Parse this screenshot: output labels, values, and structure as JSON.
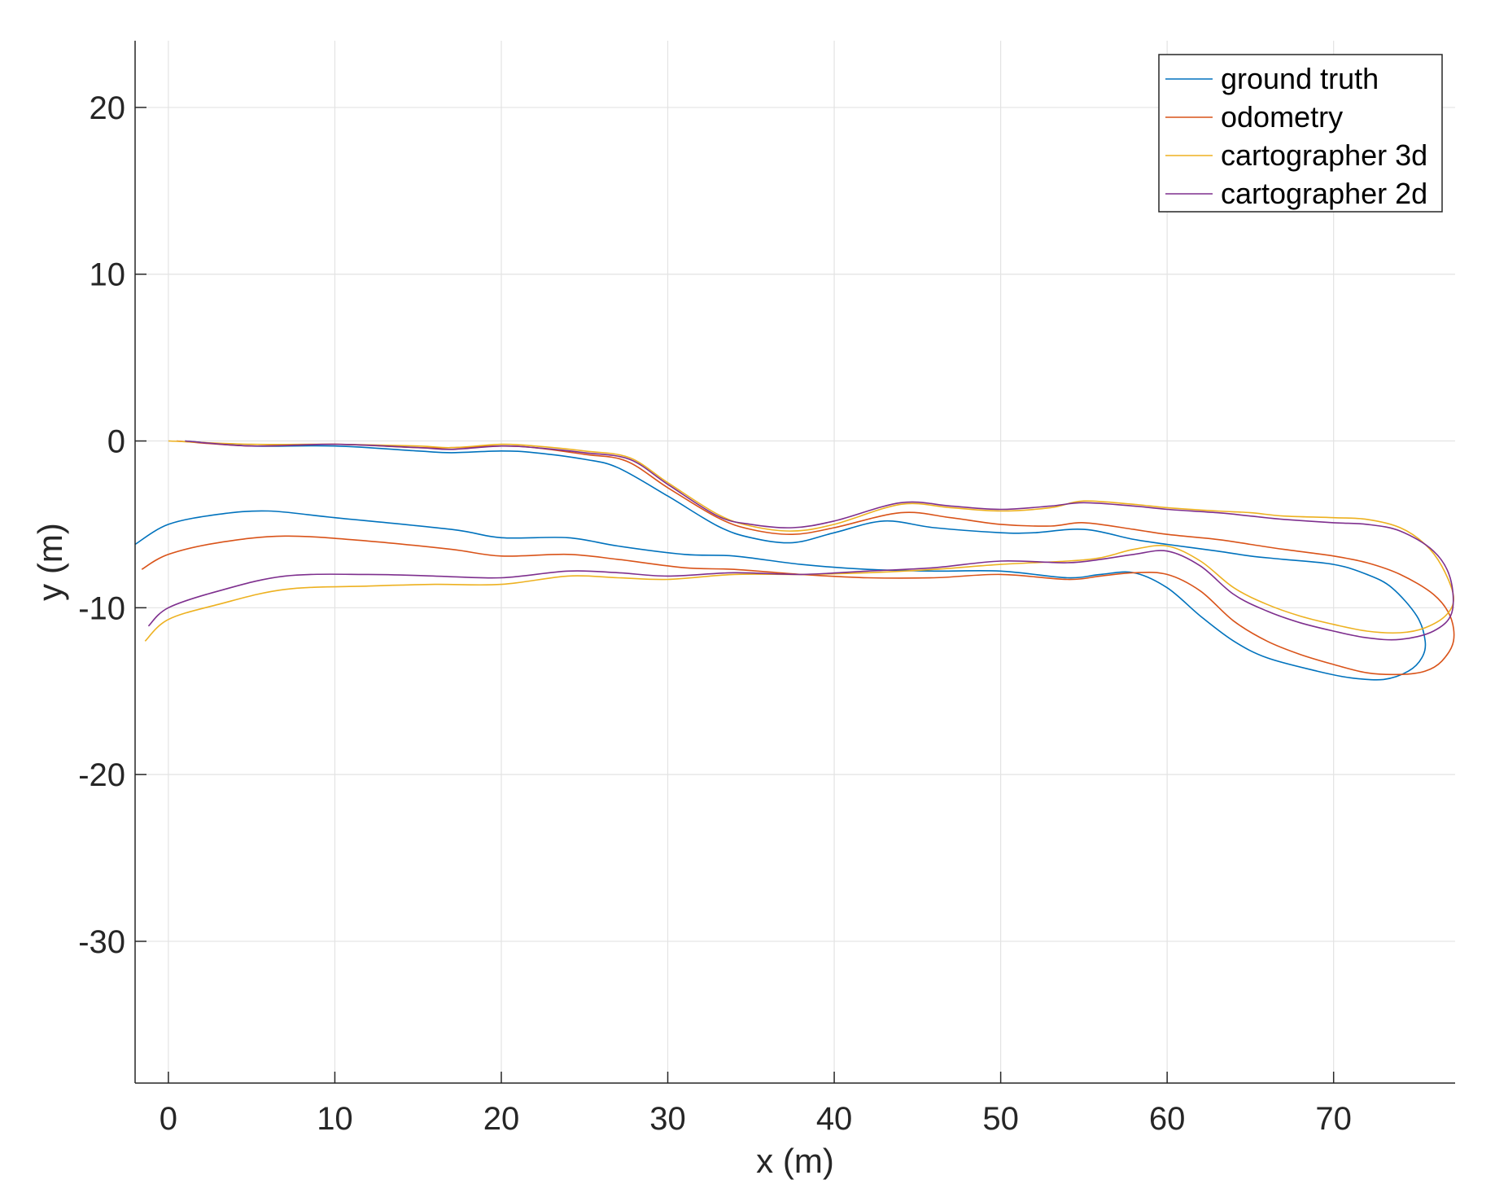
{
  "chart_data": {
    "type": "line",
    "title": "",
    "xlabel": "x (m)",
    "ylabel": "y (m)",
    "xlim": [
      -2,
      77.3
    ],
    "ylim": [
      -38.5,
      24
    ],
    "xticks": [
      0,
      10,
      20,
      30,
      40,
      50,
      60,
      70
    ],
    "yticks": [
      -30,
      -20,
      -10,
      0,
      10,
      20
    ],
    "xtick_labels": [
      "0",
      "10",
      "20",
      "30",
      "40",
      "50",
      "60",
      "70"
    ],
    "ytick_labels": [
      "-30",
      "-20",
      "-10",
      "0",
      "10",
      "20"
    ],
    "grid": true,
    "legend_position": "top-right",
    "series": [
      {
        "name": "ground truth",
        "color": "#0072BD",
        "x": [
          1,
          5,
          10,
          15,
          17,
          20,
          22,
          25,
          27,
          30,
          33,
          35,
          37.5,
          40,
          43,
          46,
          50,
          52,
          55,
          58,
          60,
          63,
          65,
          67,
          70,
          72,
          73.5,
          75,
          75.5,
          75.3,
          74.5,
          73,
          71,
          69,
          66,
          64,
          62,
          60,
          58,
          56,
          54,
          50,
          46,
          42,
          38,
          34,
          31,
          27,
          24,
          20,
          17,
          10,
          6,
          3,
          0,
          -2
        ],
        "y": [
          0,
          -0.3,
          -0.3,
          -0.6,
          -0.7,
          -0.6,
          -0.7,
          -1.1,
          -1.6,
          -3.3,
          -5.1,
          -5.8,
          -6.1,
          -5.5,
          -4.8,
          -5.2,
          -5.5,
          -5.5,
          -5.3,
          -5.9,
          -6.2,
          -6.6,
          -6.9,
          -7.1,
          -7.4,
          -8.0,
          -8.8,
          -10.5,
          -12.0,
          -13.0,
          -13.8,
          -14.3,
          -14.2,
          -13.8,
          -13.0,
          -12.0,
          -10.5,
          -8.8,
          -7.9,
          -8.0,
          -8.2,
          -7.8,
          -7.8,
          -7.7,
          -7.4,
          -6.9,
          -6.8,
          -6.3,
          -5.8,
          -5.8,
          -5.3,
          -4.6,
          -4.2,
          -4.4,
          -5.0,
          -6.2
        ]
      },
      {
        "name": "odometry",
        "color": "#D95319",
        "x": [
          0.5,
          5,
          10,
          15,
          17,
          20,
          22,
          25,
          27.5,
          30,
          33,
          35,
          37.5,
          40,
          44,
          47,
          50,
          53,
          55,
          58,
          60,
          63,
          65,
          67,
          70,
          72,
          74,
          76,
          77,
          77.2,
          76.5,
          75.5,
          74,
          72,
          70,
          68,
          66,
          64,
          62,
          60,
          58,
          56,
          54,
          50,
          46,
          42,
          38,
          34,
          31,
          27,
          24,
          20,
          17,
          12,
          7,
          3,
          0,
          -1.6
        ],
        "y": [
          0,
          -0.3,
          -0.2,
          -0.4,
          -0.4,
          -0.3,
          -0.4,
          -0.8,
          -1.2,
          -2.8,
          -4.6,
          -5.3,
          -5.6,
          -5.2,
          -4.3,
          -4.6,
          -5.0,
          -5.1,
          -4.9,
          -5.3,
          -5.6,
          -5.9,
          -6.2,
          -6.5,
          -6.9,
          -7.3,
          -8.0,
          -9.2,
          -10.5,
          -12.0,
          -13.2,
          -13.8,
          -14.0,
          -13.9,
          -13.4,
          -12.8,
          -12.0,
          -10.8,
          -9.0,
          -8.0,
          -7.9,
          -8.1,
          -8.3,
          -8.0,
          -8.2,
          -8.2,
          -8.0,
          -7.7,
          -7.6,
          -7.1,
          -6.8,
          -6.9,
          -6.5,
          -6.0,
          -5.7,
          -6.1,
          -6.8,
          -7.7
        ]
      },
      {
        "name": "cartographer 3d",
        "color": "#EDB120",
        "x": [
          0,
          5,
          10,
          15,
          17,
          20,
          22,
          25,
          27.7,
          30,
          33,
          35,
          37.5,
          40,
          44,
          47,
          50,
          53,
          55,
          58,
          60,
          63,
          65,
          67,
          70,
          72,
          74,
          75.5,
          76.5,
          77.2,
          76.8,
          75.5,
          74,
          72,
          70,
          68,
          66,
          64,
          62,
          60,
          58,
          56,
          54,
          50,
          46,
          42,
          38,
          34,
          30,
          27,
          24,
          20,
          16,
          12,
          7,
          3,
          0,
          -1.4
        ],
        "y": [
          0,
          -0.2,
          -0.2,
          -0.3,
          -0.4,
          -0.2,
          -0.3,
          -0.6,
          -1.0,
          -2.5,
          -4.4,
          -5.1,
          -5.4,
          -5.0,
          -3.8,
          -4.0,
          -4.2,
          -4.0,
          -3.6,
          -3.8,
          -4.0,
          -4.2,
          -4.3,
          -4.5,
          -4.6,
          -4.7,
          -5.2,
          -6.2,
          -7.5,
          -9.3,
          -10.4,
          -11.2,
          -11.5,
          -11.4,
          -11.0,
          -10.5,
          -9.8,
          -8.8,
          -7.2,
          -6.3,
          -6.5,
          -7.0,
          -7.2,
          -7.4,
          -7.7,
          -7.9,
          -8.0,
          -8.0,
          -8.3,
          -8.2,
          -8.1,
          -8.6,
          -8.6,
          -8.7,
          -8.9,
          -9.8,
          -10.7,
          -12.0
        ]
      },
      {
        "name": "cartographer 2d",
        "color": "#7E2F8E",
        "x": [
          1,
          5,
          10,
          15,
          17,
          20,
          22,
          25,
          27.7,
          30,
          33,
          35,
          37.5,
          40,
          44,
          47,
          50,
          53,
          55,
          58,
          60,
          63,
          65,
          67,
          70,
          72,
          74,
          76,
          77,
          77.1,
          76,
          74,
          72,
          70,
          68,
          66,
          64,
          62,
          60,
          58,
          56,
          54,
          50,
          46,
          42,
          38,
          34,
          30,
          27,
          24,
          20,
          16,
          12,
          7,
          3,
          0,
          -1.2
        ],
        "y": [
          0,
          -0.3,
          -0.2,
          -0.4,
          -0.5,
          -0.3,
          -0.4,
          -0.7,
          -1.1,
          -2.6,
          -4.5,
          -5.0,
          -5.2,
          -4.8,
          -3.7,
          -3.9,
          -4.1,
          -3.9,
          -3.7,
          -3.9,
          -4.1,
          -4.3,
          -4.5,
          -4.7,
          -4.9,
          -5.0,
          -5.4,
          -6.6,
          -8.2,
          -10.3,
          -11.4,
          -11.9,
          -11.8,
          -11.4,
          -10.9,
          -10.2,
          -9.2,
          -7.5,
          -6.6,
          -6.8,
          -7.1,
          -7.3,
          -7.2,
          -7.6,
          -7.8,
          -8.0,
          -7.9,
          -8.1,
          -7.9,
          -7.8,
          -8.2,
          -8.1,
          -8.0,
          -8.1,
          -9.0,
          -10.0,
          -11.1
        ]
      }
    ]
  }
}
